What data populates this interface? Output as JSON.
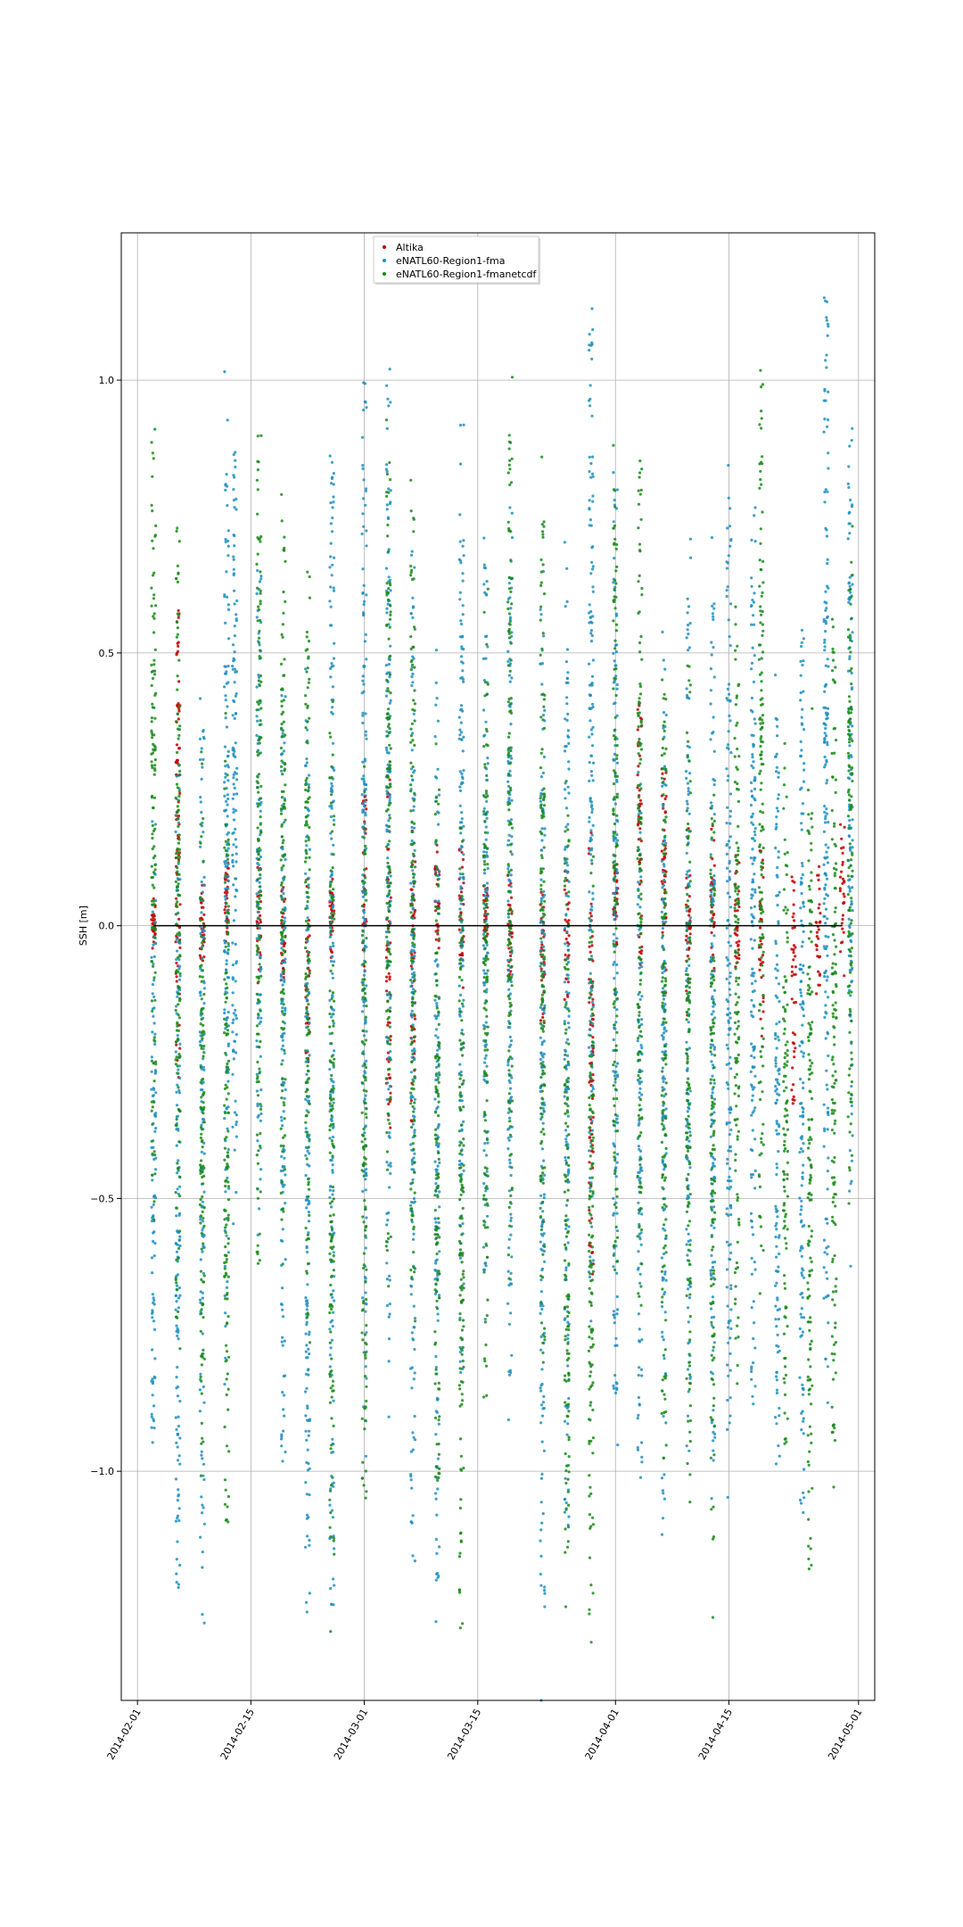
{
  "chart_data": {
    "type": "scatter",
    "title": "",
    "xlabel": "",
    "ylabel": "SSH [m]",
    "x_ticks": [
      "2014-02-01",
      "2014-02-15",
      "2014-03-01",
      "2014-03-15",
      "2014-04-01",
      "2014-04-15",
      "2014-05-01"
    ],
    "y_ticks": [
      -1.0,
      -0.5,
      0.0,
      0.5,
      1.0
    ],
    "y_tick_labels": [
      "−1.0",
      "−0.5",
      "0.0",
      "0.5",
      "1.0"
    ],
    "xlim": [
      "2014-01-30",
      "2014-05-03"
    ],
    "ylim": [
      -1.42,
      1.27
    ],
    "grid": true,
    "legend_position": "top-center",
    "zero_line": true,
    "colors": {
      "Altika": "#c00000",
      "eNATL60-Region1-fma": "#1f8fc0",
      "eNATL60-Region1-fmanetcdf": "#1a8a1a"
    },
    "series": [
      {
        "name": "Altika",
        "color": "#c00000",
        "passes": [
          {
            "date": "2014-02-03",
            "ymin": -0.05,
            "ymax": 0.05
          },
          {
            "date": "2014-02-06",
            "ymin": -0.3,
            "ymax": 0.58
          },
          {
            "date": "2014-02-09",
            "ymin": -0.08,
            "ymax": 0.08
          },
          {
            "date": "2014-02-12",
            "ymin": -0.03,
            "ymax": 0.11
          },
          {
            "date": "2014-02-16",
            "ymin": -0.12,
            "ymax": 0.12
          },
          {
            "date": "2014-02-19",
            "ymin": -0.1,
            "ymax": 0.1
          },
          {
            "date": "2014-02-22",
            "ymin": -0.25,
            "ymax": 0.1
          },
          {
            "date": "2014-02-25",
            "ymin": -0.05,
            "ymax": 0.08
          },
          {
            "date": "2014-03-01",
            "ymin": -0.1,
            "ymax": 0.25
          },
          {
            "date": "2014-03-04",
            "ymin": -0.35,
            "ymax": 0.3
          },
          {
            "date": "2014-03-07",
            "ymin": -0.4,
            "ymax": 0.2
          },
          {
            "date": "2014-03-10",
            "ymin": -0.05,
            "ymax": 0.15
          },
          {
            "date": "2014-03-13",
            "ymin": -0.1,
            "ymax": 0.15
          },
          {
            "date": "2014-03-16",
            "ymin": -0.05,
            "ymax": 0.08
          },
          {
            "date": "2014-03-19",
            "ymin": -0.1,
            "ymax": 0.1
          },
          {
            "date": "2014-03-23",
            "ymin": -0.2,
            "ymax": 0.1
          },
          {
            "date": "2014-03-26",
            "ymin": -0.15,
            "ymax": 0.1
          },
          {
            "date": "2014-03-29",
            "ymin": -0.65,
            "ymax": 0.15
          },
          {
            "date": "2014-04-01",
            "ymin": -0.05,
            "ymax": 0.12
          },
          {
            "date": "2014-04-04",
            "ymin": -0.1,
            "ymax": 0.4
          },
          {
            "date": "2014-04-07",
            "ymin": -0.15,
            "ymax": 0.3
          },
          {
            "date": "2014-04-10",
            "ymin": -0.2,
            "ymax": 0.2
          },
          {
            "date": "2014-04-13",
            "ymin": -0.1,
            "ymax": 0.2
          },
          {
            "date": "2014-04-16",
            "ymin": -0.1,
            "ymax": 0.15
          },
          {
            "date": "2014-04-19",
            "ymin": -0.2,
            "ymax": 0.15
          },
          {
            "date": "2014-04-23",
            "ymin": -0.35,
            "ymax": 0.1
          },
          {
            "date": "2014-04-26",
            "ymin": -0.15,
            "ymax": 0.1
          },
          {
            "date": "2014-04-29",
            "ymin": -0.1,
            "ymax": 0.2
          }
        ]
      },
      {
        "name": "eNATL60-Region1-fma",
        "color": "#1f8fc0",
        "passes": [
          {
            "date": "2014-02-03",
            "ymin": -0.95,
            "ymax": 0.2
          },
          {
            "date": "2014-02-06",
            "ymin": -1.22,
            "ymax": 0.35
          },
          {
            "date": "2014-02-09",
            "ymin": -1.15,
            "ymax": 0.4
          },
          {
            "date": "2014-02-12",
            "ymin": -0.8,
            "ymax": 0.87
          },
          {
            "date": "2014-02-13",
            "ymin": -0.5,
            "ymax": 0.89
          },
          {
            "date": "2014-02-16",
            "ymin": -0.5,
            "ymax": 0.7
          },
          {
            "date": "2014-02-19",
            "ymin": -0.97,
            "ymax": 0.55
          },
          {
            "date": "2014-02-22",
            "ymin": -1.28,
            "ymax": 0.4
          },
          {
            "date": "2014-02-25",
            "ymin": -1.25,
            "ymax": 0.86
          },
          {
            "date": "2014-03-01",
            "ymin": -0.9,
            "ymax": 1.0
          },
          {
            "date": "2014-03-04",
            "ymin": -0.75,
            "ymax": 0.97
          },
          {
            "date": "2014-03-07",
            "ymin": -1.17,
            "ymax": 0.7
          },
          {
            "date": "2014-03-10",
            "ymin": -1.2,
            "ymax": 0.46
          },
          {
            "date": "2014-03-13",
            "ymin": -0.82,
            "ymax": 0.92
          },
          {
            "date": "2014-03-16",
            "ymin": -0.65,
            "ymax": 0.7
          },
          {
            "date": "2014-03-19",
            "ymin": -0.92,
            "ymax": 0.78
          },
          {
            "date": "2014-03-23",
            "ymin": -1.27,
            "ymax": 0.6
          },
          {
            "date": "2014-03-26",
            "ymin": -1.1,
            "ymax": 0.6
          },
          {
            "date": "2014-03-29",
            "ymin": -0.65,
            "ymax": 1.12
          },
          {
            "date": "2014-04-01",
            "ymin": -0.9,
            "ymax": 0.8
          },
          {
            "date": "2014-04-04",
            "ymin": -1.03,
            "ymax": 0.3
          },
          {
            "date": "2014-04-07",
            "ymin": -1.1,
            "ymax": 0.51
          },
          {
            "date": "2014-04-10",
            "ymin": -0.95,
            "ymax": 0.6
          },
          {
            "date": "2014-04-13",
            "ymin": -1.0,
            "ymax": 0.6
          },
          {
            "date": "2014-04-15",
            "ymin": -0.95,
            "ymax": 0.8
          },
          {
            "date": "2014-04-18",
            "ymin": -0.85,
            "ymax": 0.85
          },
          {
            "date": "2014-04-21",
            "ymin": -1.02,
            "ymax": 0.4
          },
          {
            "date": "2014-04-24",
            "ymin": -1.08,
            "ymax": 0.55
          },
          {
            "date": "2014-04-27",
            "ymin": -0.8,
            "ymax": 1.15
          },
          {
            "date": "2014-04-30",
            "ymin": -0.5,
            "ymax": 0.92
          }
        ]
      },
      {
        "name": "eNATL60-Region1-fmanetcdf",
        "color": "#1a8a1a",
        "passes": [
          {
            "date": "2014-02-03",
            "ymin": -0.5,
            "ymax": 0.87
          },
          {
            "date": "2014-02-06",
            "ymin": -0.78,
            "ymax": 0.74
          },
          {
            "date": "2014-02-09",
            "ymin": -0.95,
            "ymax": 0.33
          },
          {
            "date": "2014-02-12",
            "ymin": -1.1,
            "ymax": 0.35
          },
          {
            "date": "2014-02-16",
            "ymin": -0.62,
            "ymax": 0.9
          },
          {
            "date": "2014-02-19",
            "ymin": -0.55,
            "ymax": 0.78
          },
          {
            "date": "2014-02-22",
            "ymin": -0.8,
            "ymax": 0.66
          },
          {
            "date": "2014-02-25",
            "ymin": -1.17,
            "ymax": 0.37
          },
          {
            "date": "2014-03-01",
            "ymin": -1.05,
            "ymax": 0.25
          },
          {
            "date": "2014-03-04",
            "ymin": -0.6,
            "ymax": 0.84
          },
          {
            "date": "2014-03-07",
            "ymin": -0.68,
            "ymax": 0.79
          },
          {
            "date": "2014-03-10",
            "ymin": -1.05,
            "ymax": 0.25
          },
          {
            "date": "2014-03-13",
            "ymin": -1.3,
            "ymax": 0.2
          },
          {
            "date": "2014-03-16",
            "ymin": -0.85,
            "ymax": 0.55
          },
          {
            "date": "2014-03-19",
            "ymin": -0.6,
            "ymax": 0.9
          },
          {
            "date": "2014-03-23",
            "ymin": -0.82,
            "ymax": 0.75
          },
          {
            "date": "2014-03-26",
            "ymin": -1.17,
            "ymax": 0.23
          },
          {
            "date": "2014-03-29",
            "ymin": -1.29,
            "ymax": 0.2
          },
          {
            "date": "2014-04-01",
            "ymin": -0.62,
            "ymax": 0.82
          },
          {
            "date": "2014-04-04",
            "ymin": -0.7,
            "ymax": 0.86
          },
          {
            "date": "2014-04-07",
            "ymin": -0.98,
            "ymax": 0.45
          },
          {
            "date": "2014-04-10",
            "ymin": -1.0,
            "ymax": 0.48
          },
          {
            "date": "2014-04-13",
            "ymin": -1.15,
            "ymax": 0.2
          },
          {
            "date": "2014-04-16",
            "ymin": -0.8,
            "ymax": 0.6
          },
          {
            "date": "2014-04-19",
            "ymin": -0.6,
            "ymax": 1.03
          },
          {
            "date": "2014-04-22",
            "ymin": -0.95,
            "ymax": 0.3
          },
          {
            "date": "2014-04-25",
            "ymin": -1.18,
            "ymax": 0.4
          },
          {
            "date": "2014-04-28",
            "ymin": -0.95,
            "ymax": 0.55
          },
          {
            "date": "2014-04-30",
            "ymin": -0.52,
            "ymax": 0.75
          }
        ]
      }
    ]
  }
}
